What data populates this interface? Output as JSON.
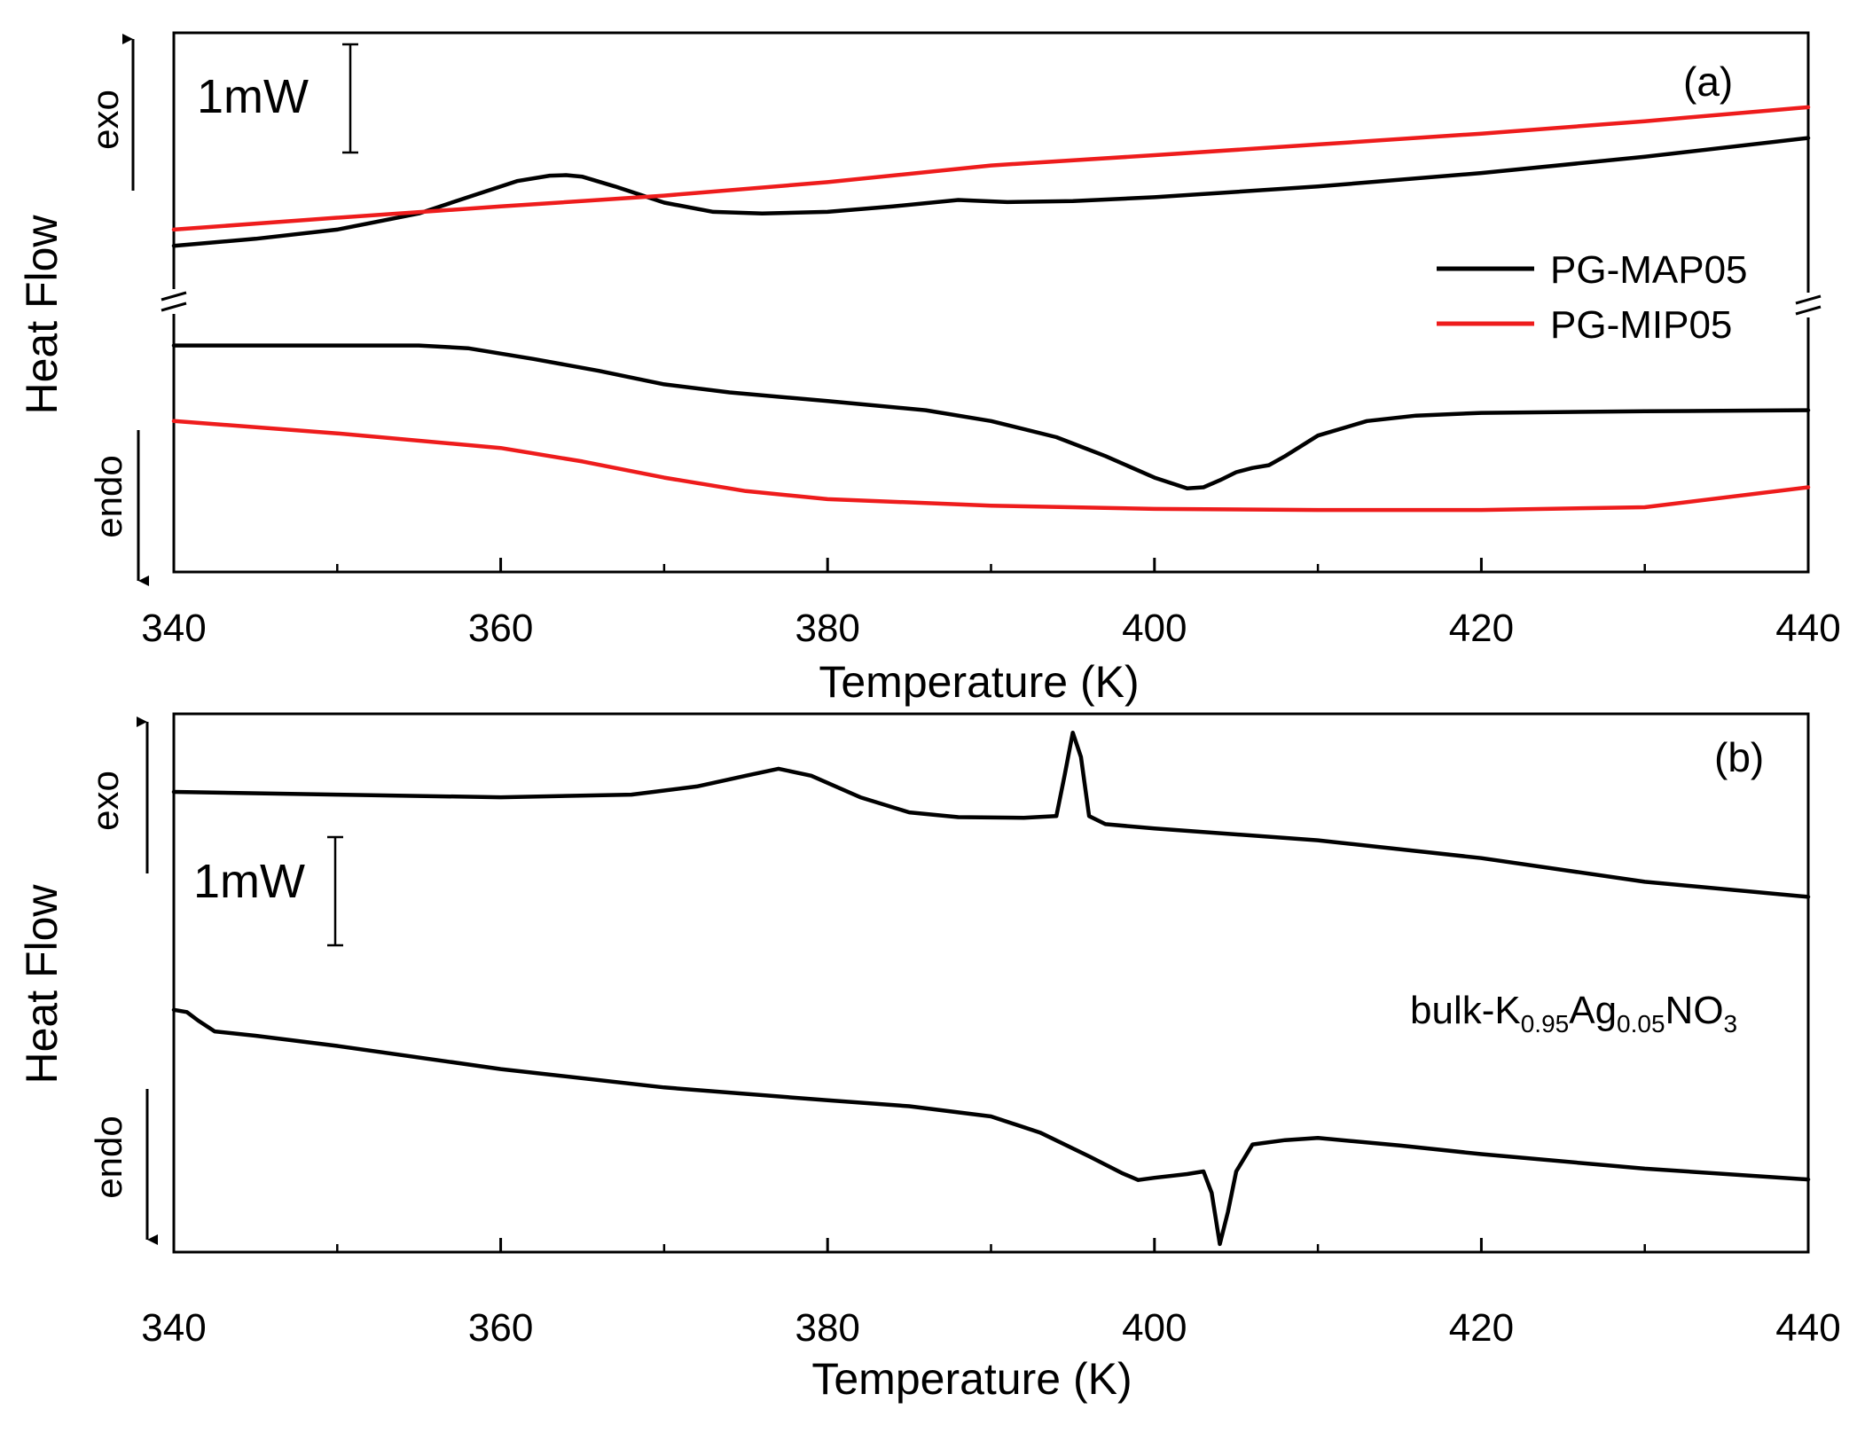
{
  "colors": {
    "black_series": "#000000",
    "red_series": "#ee1c1c",
    "axis": "#000000"
  },
  "chart_data": [
    {
      "type": "line",
      "panel_label": "(a)",
      "xlabel": "Temperature (K)",
      "ylabel": "Heat Flow",
      "exo_label": "exo",
      "endo_label": "endo",
      "scale_bar_label": "1mW",
      "xlim": [
        340,
        440
      ],
      "ylim": [
        0,
        100
      ],
      "x_ticks": [
        340,
        360,
        380,
        400,
        420,
        440
      ],
      "x_tick_labels": [
        "340",
        "360",
        "380",
        "400",
        "420",
        "440"
      ],
      "x_minor_ticks": [
        350,
        370,
        390,
        410,
        430
      ],
      "axis_break": true,
      "legend": [
        {
          "name": "PG-MAP05",
          "color": "#000000"
        },
        {
          "name": "PG-MIP05",
          "color": "#ee1c1c"
        }
      ],
      "series": [
        {
          "name": "PG-MAP05 (upper)",
          "color": "#000000",
          "x": [
            340,
            345,
            350,
            355,
            358,
            361,
            363,
            364,
            365,
            367,
            370,
            373,
            376,
            380,
            384,
            388,
            391,
            395,
            400,
            410,
            420,
            430,
            440
          ],
          "y": [
            60.5,
            61.8,
            63.5,
            66.5,
            69.5,
            72.5,
            73.5,
            73.6,
            73.3,
            71.5,
            68.5,
            66.8,
            66.5,
            66.8,
            67.8,
            69.0,
            68.6,
            68.8,
            69.5,
            71.5,
            74.0,
            77.0,
            80.5
          ]
        },
        {
          "name": "PG-MIP05 (upper)",
          "color": "#ee1c1c",
          "x": [
            340,
            350,
            360,
            370,
            380,
            390,
            400,
            410,
            420,
            430,
            440
          ],
          "y": [
            63.5,
            65.7,
            67.8,
            69.8,
            72.3,
            75.4,
            77.3,
            79.3,
            81.3,
            83.6,
            86.2
          ]
        },
        {
          "name": "PG-MAP05 (lower)",
          "color": "#000000",
          "x": [
            340,
            350,
            355,
            358,
            362,
            366,
            370,
            374,
            380,
            386,
            390,
            394,
            397,
            400,
            402,
            403,
            404,
            405,
            406,
            407,
            408,
            410,
            413,
            416,
            420,
            430,
            440
          ],
          "y": [
            42.0,
            42.0,
            42.0,
            41.5,
            39.5,
            37.3,
            34.8,
            33.3,
            31.7,
            30.0,
            28.0,
            25.0,
            21.5,
            17.5,
            15.5,
            15.7,
            17.0,
            18.5,
            19.3,
            19.8,
            21.5,
            25.3,
            28.0,
            29.0,
            29.5,
            29.8,
            30.0
          ]
        },
        {
          "name": "PG-MIP05 (lower)",
          "color": "#ee1c1c",
          "x": [
            340,
            350,
            360,
            365,
            370,
            375,
            380,
            390,
            400,
            410,
            420,
            430,
            440
          ],
          "y": [
            28.0,
            25.7,
            23.0,
            20.5,
            17.5,
            15.0,
            13.5,
            12.3,
            11.7,
            11.5,
            11.5,
            12.0,
            15.7
          ]
        }
      ]
    },
    {
      "type": "line",
      "panel_label": "(b)",
      "xlabel": "Temperature (K)",
      "ylabel": "Heat Flow",
      "exo_label": "exo",
      "endo_label": "endo",
      "scale_bar_label": "1mW",
      "sample_label": {
        "main": "bulk-K",
        "sub1": "0.95",
        "mid": "Ag",
        "sub2": "0.05",
        "end": "NO",
        "sub3": "3"
      },
      "xlim": [
        340,
        440
      ],
      "ylim": [
        0,
        100
      ],
      "x_ticks": [
        340,
        360,
        380,
        400,
        420,
        440
      ],
      "x_tick_labels": [
        "340",
        "360",
        "380",
        "400",
        "420",
        "440"
      ],
      "x_minor_ticks": [
        350,
        370,
        390,
        410,
        430
      ],
      "series": [
        {
          "name": "bulk (upper)",
          "color": "#000000",
          "x": [
            340,
            350,
            360,
            368,
            372,
            375,
            377,
            379,
            382,
            385,
            388,
            392,
            394,
            394.5,
            395,
            395.5,
            396,
            397,
            400,
            410,
            420,
            430,
            440
          ],
          "y": [
            85.5,
            85.0,
            84.5,
            85.0,
            86.5,
            88.5,
            89.8,
            88.5,
            84.5,
            81.7,
            80.8,
            80.7,
            81.0,
            88.5,
            96.5,
            92.0,
            81.0,
            79.5,
            78.7,
            76.5,
            73.2,
            68.8,
            66.0
          ]
        },
        {
          "name": "bulk (lower)",
          "color": "#000000",
          "x": [
            340,
            340.8,
            341.5,
            342.5,
            345,
            350,
            360,
            370,
            380,
            385,
            390,
            393,
            396,
            398,
            399,
            400,
            402,
            403,
            403.5,
            404,
            404.5,
            405,
            406,
            408,
            410,
            415,
            420,
            430,
            440
          ],
          "y": [
            45.0,
            44.6,
            43.0,
            41.0,
            40.2,
            38.3,
            34.0,
            30.6,
            28.2,
            27.1,
            25.2,
            22.2,
            17.8,
            14.7,
            13.4,
            13.8,
            14.5,
            15.0,
            11.0,
            1.5,
            7.5,
            15.0,
            20.0,
            20.8,
            21.2,
            19.8,
            18.2,
            15.5,
            13.5
          ]
        }
      ]
    }
  ]
}
